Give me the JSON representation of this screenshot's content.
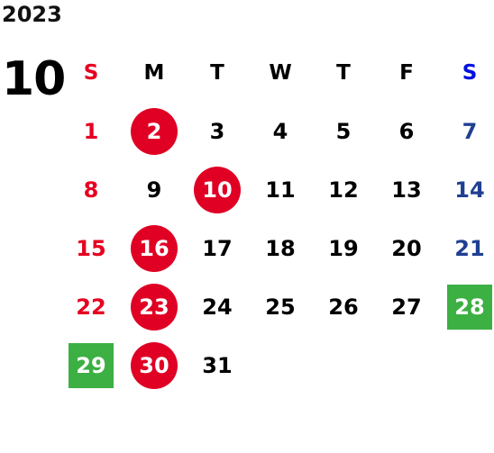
{
  "calendar": {
    "year": "2023",
    "month": "10",
    "weekdays": [
      "S",
      "M",
      "T",
      "W",
      "T",
      "F",
      "S"
    ],
    "first_weekday_index": 0,
    "days": [
      {
        "label": "1",
        "mark": "none"
      },
      {
        "label": "2",
        "mark": "red-circle"
      },
      {
        "label": "3",
        "mark": "none"
      },
      {
        "label": "4",
        "mark": "none"
      },
      {
        "label": "5",
        "mark": "none"
      },
      {
        "label": "6",
        "mark": "none"
      },
      {
        "label": "7",
        "mark": "none"
      },
      {
        "label": "8",
        "mark": "none"
      },
      {
        "label": "9",
        "mark": "none"
      },
      {
        "label": "10",
        "mark": "red-circle"
      },
      {
        "label": "11",
        "mark": "none"
      },
      {
        "label": "12",
        "mark": "none"
      },
      {
        "label": "13",
        "mark": "none"
      },
      {
        "label": "14",
        "mark": "none"
      },
      {
        "label": "15",
        "mark": "none"
      },
      {
        "label": "16",
        "mark": "red-circle"
      },
      {
        "label": "17",
        "mark": "none"
      },
      {
        "label": "18",
        "mark": "none"
      },
      {
        "label": "19",
        "mark": "none"
      },
      {
        "label": "20",
        "mark": "none"
      },
      {
        "label": "21",
        "mark": "none"
      },
      {
        "label": "22",
        "mark": "none"
      },
      {
        "label": "23",
        "mark": "red-circle"
      },
      {
        "label": "24",
        "mark": "none"
      },
      {
        "label": "25",
        "mark": "none"
      },
      {
        "label": "26",
        "mark": "none"
      },
      {
        "label": "27",
        "mark": "none"
      },
      {
        "label": "28",
        "mark": "green-box"
      },
      {
        "label": "29",
        "mark": "green-box"
      },
      {
        "label": "30",
        "mark": "red-circle"
      },
      {
        "label": "31",
        "mark": "none"
      }
    ],
    "colors": {
      "sunday": "#e60021",
      "saturday": "#1f3f91",
      "saturday_header": "#0010e0",
      "circle": "#e00024",
      "box": "#3cb043"
    }
  }
}
